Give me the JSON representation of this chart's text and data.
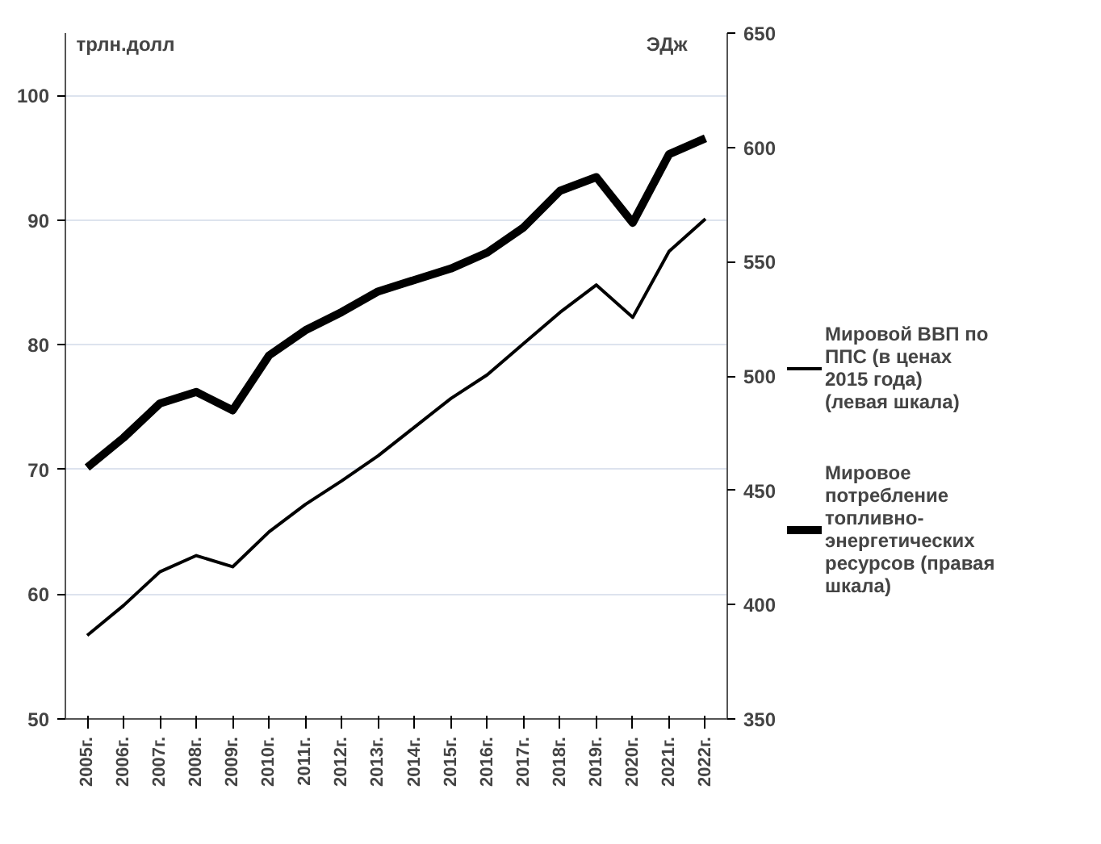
{
  "chart_data": {
    "type": "line",
    "ylabel": "трлн.долл",
    "y2label": "ЭДж",
    "categories": [
      "2005г.",
      "2006г.",
      "2007г.",
      "2008г.",
      "2009г.",
      "2010г.",
      "2011г.",
      "2012г.",
      "2013г.",
      "2014г.",
      "2015г.",
      "2016г.",
      "2017г.",
      "2018г.",
      "2019г.",
      "2020г.",
      "2021г.",
      "2022г."
    ],
    "series": [
      {
        "name": "Мировой ВВП по ППС (в ценах 2015 года) (левая шкала)",
        "color": "#000000",
        "values": [
          56.7,
          59.1,
          61.8,
          63.1,
          62.2,
          65.0,
          67.2,
          69.1,
          71.1,
          73.4,
          75.7,
          77.6,
          80.1,
          82.6,
          84.8,
          82.2,
          87.5,
          90.1
        ]
      },
      {
        "name": "Мировое потребление топливно-энергетических ресурсов (правая шкала)",
        "color": "#000000",
        "axis": "y2",
        "values": [
          460,
          473,
          488,
          493,
          485,
          509,
          520,
          528,
          537,
          542,
          547,
          554,
          565,
          581,
          587,
          567,
          597,
          604
        ]
      }
    ],
    "ylim": [
      50,
      105
    ],
    "yticks": [
      50,
      60,
      70,
      80,
      90,
      100
    ],
    "y2lim": [
      350,
      650
    ],
    "y2ticks": [
      350,
      400,
      450,
      500,
      550,
      600,
      650
    ],
    "grid": "y",
    "legend": "right",
    "marker": "none",
    "line_style": "solid"
  }
}
